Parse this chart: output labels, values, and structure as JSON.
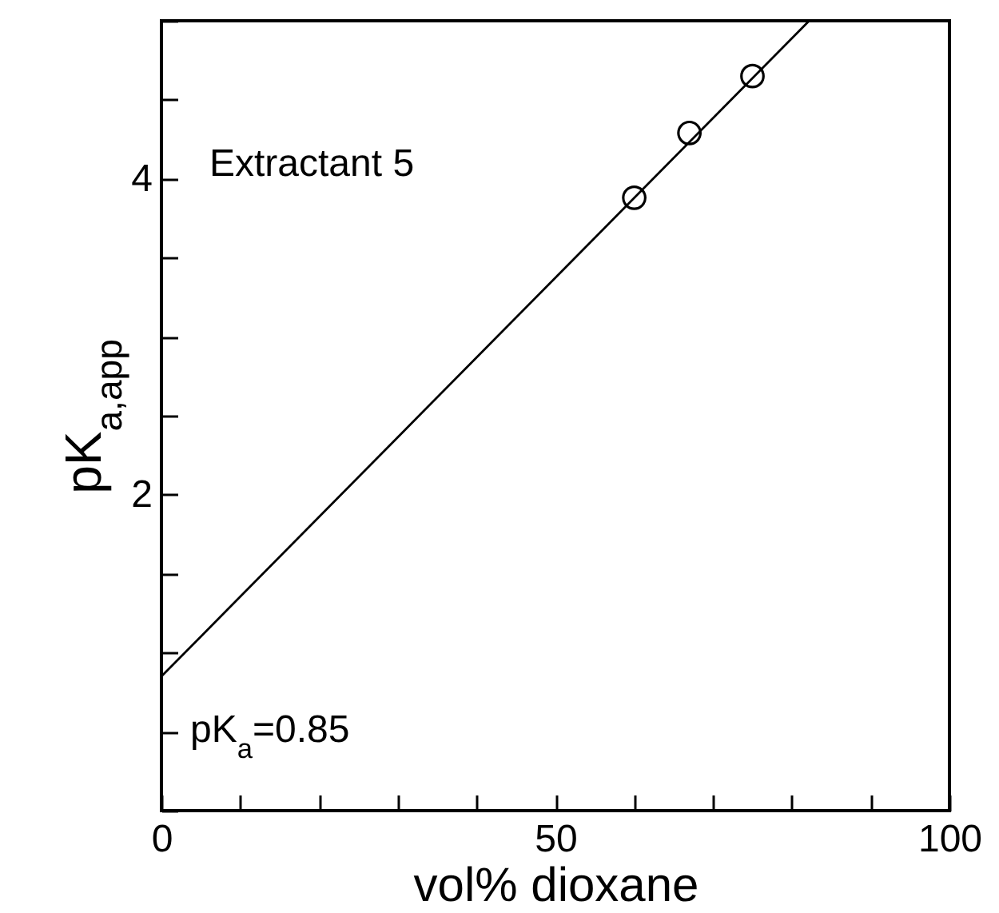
{
  "chart_data": {
    "type": "scatter",
    "xlabel": "vol% dioxane",
    "ylabel": "pK$_{a,app}$",
    "xlim": [
      0,
      100
    ],
    "xticks": [
      0,
      {
        "value": 10,
        "label": null
      },
      {
        "value": 20,
        "label": null
      },
      {
        "value": 30,
        "label": null
      },
      {
        "value": 40,
        "label": null
      },
      50,
      {
        "value": 60,
        "label": null
      },
      {
        "value": 70,
        "label": null
      },
      {
        "value": 80,
        "label": null
      },
      {
        "value": 90,
        "label": null
      },
      100
    ],
    "ylim": [
      0,
      5
    ],
    "yticks": [
      {
        "value": 0,
        "label": null
      },
      {
        "value": 0.5,
        "label": null
      },
      {
        "value": 1,
        "label": null
      },
      {
        "value": 1.5,
        "label": null
      },
      2,
      {
        "value": 2.5,
        "label": null
      },
      {
        "value": 3,
        "label": null
      },
      {
        "value": 3.5,
        "label": null
      },
      4,
      {
        "value": 4.5,
        "label": null
      },
      {
        "value": 5,
        "label": null
      }
    ],
    "series": [
      {
        "color": "#000000",
        "marker": "circle",
        "x": [
          60,
          67,
          75
        ],
        "values": [
          3.88,
          4.29,
          4.65
        ]
      },
      {
        "type": "line",
        "color": "#000000",
        "x": [
          0,
          82.2
        ],
        "values": [
          0.85,
          5
        ]
      }
    ],
    "line_style": "solid",
    "grid": false,
    "annotations": [
      "Extractant 5",
      {
        "text": "pK$_{a}$=0.85",
        "x": 0,
        "y": 0.85
      }
    ]
  }
}
